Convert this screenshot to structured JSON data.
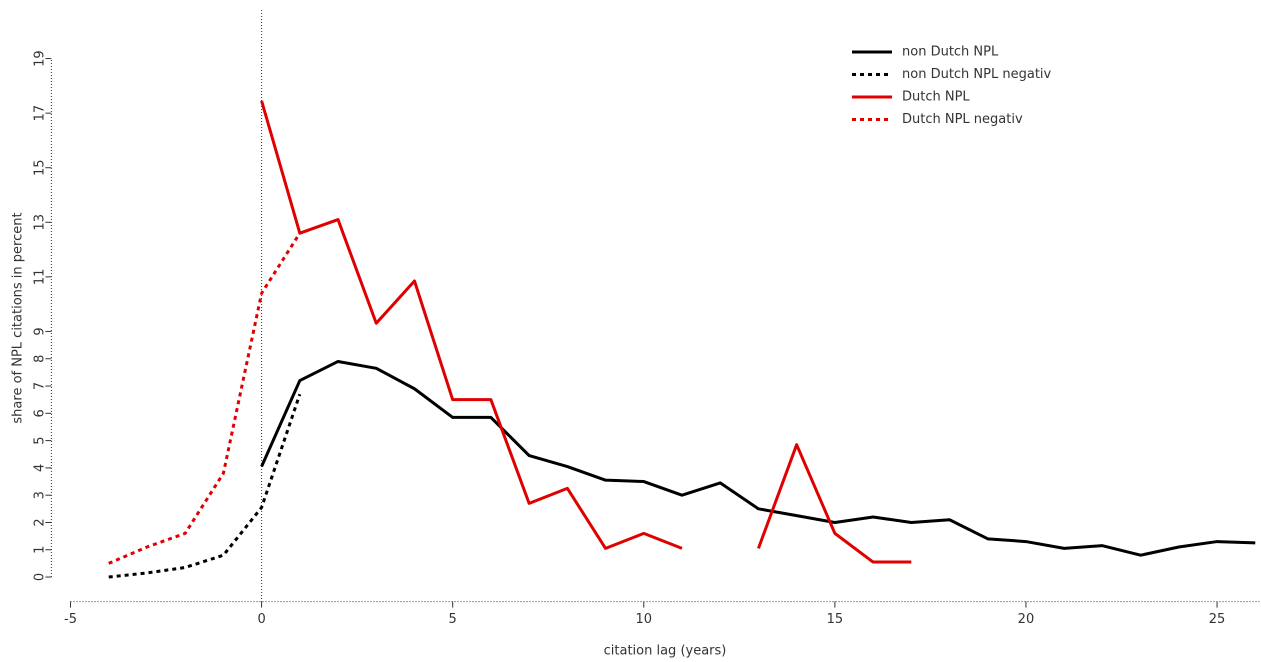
{
  "chart_data": {
    "type": "line",
    "x_label": "citation lag (years)",
    "y_label": "share of NPL citations in percent",
    "xlim": [
      -5.5,
      26.15
    ],
    "ylim": [
      -0.9,
      21
    ],
    "xticks": [
      -5,
      0,
      5,
      10,
      15,
      20,
      25
    ],
    "yticks": [
      0,
      1,
      2,
      3,
      4,
      5,
      6,
      7,
      8,
      9,
      11,
      13,
      15,
      17,
      19
    ],
    "vline": 0,
    "legend": "top-right",
    "series": [
      {
        "name": "non Dutch NPL",
        "color": "#000000",
        "dash": false,
        "x": [
          0,
          1,
          2,
          3,
          4,
          5,
          6,
          7,
          8,
          9,
          10,
          11,
          12,
          13,
          14,
          15,
          16,
          17,
          18,
          19,
          20,
          21,
          22,
          23,
          24,
          25,
          26
        ],
        "values": [
          4.05,
          7.2,
          7.9,
          7.65,
          6.9,
          5.85,
          5.85,
          4.45,
          4.05,
          3.55,
          3.5,
          3.0,
          3.45,
          2.5,
          2.25,
          2.0,
          2.2,
          2.0,
          2.1,
          1.4,
          1.3,
          1.05,
          1.15,
          0.8,
          1.1,
          1.3,
          1.25
        ]
      },
      {
        "name": "non Dutch NPL negativ",
        "color": "#000000",
        "dash": true,
        "x": [
          -4,
          -3,
          -2,
          -1,
          0,
          1
        ],
        "values": [
          0.0,
          0.15,
          0.35,
          0.8,
          2.55,
          6.7
        ]
      },
      {
        "name": "Dutch NPL",
        "color": "#e00000",
        "dash": false,
        "x": [
          0,
          1,
          2,
          3,
          4,
          5,
          6,
          7,
          8,
          9,
          10,
          11,
          12,
          13,
          14,
          15,
          16,
          17
        ],
        "values": [
          17.45,
          12.6,
          13.1,
          9.3,
          10.85,
          6.5,
          6.5,
          2.7,
          3.25,
          1.05,
          1.6,
          1.05,
          null,
          1.05,
          4.85,
          1.6,
          0.55,
          0.55
        ]
      },
      {
        "name": "Dutch NPL negativ",
        "color": "#e00000",
        "dash": true,
        "x": [
          -4,
          -3,
          -2,
          -1,
          0,
          1
        ],
        "values": [
          0.5,
          1.1,
          1.6,
          3.8,
          10.4,
          12.6
        ]
      }
    ]
  }
}
